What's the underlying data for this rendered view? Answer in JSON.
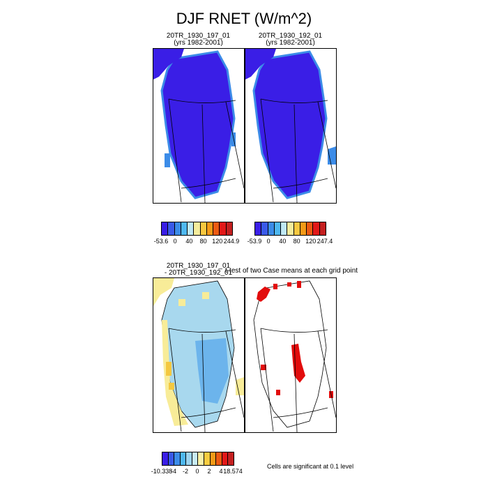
{
  "title": "DJF RNET (W/m^2)",
  "panels": {
    "case1": {
      "name": "20TR_1930_197_01",
      "years": "(yrs 1982-2001)"
    },
    "case2": {
      "name": "20TR_1930_192_01",
      "years": "(yrs 1982-2001)"
    },
    "diff": {
      "line1": "20TR_1930_197_01",
      "line2": "- 20TR_1930_192_01"
    },
    "ttest": {
      "title": "t-test of two Case means at each grid point"
    }
  },
  "colorbars": {
    "case1": {
      "colors": [
        "#3a1ee6",
        "#3a5ae8",
        "#3c8ce8",
        "#4fb8f0",
        "#bfe8f4",
        "#f4ec9c",
        "#f8c840",
        "#f49a18",
        "#ec5a12",
        "#e21818",
        "#c42020"
      ],
      "tick_labels": [
        "-53.6",
        "0",
        "40",
        "80",
        "120",
        "244.9"
      ]
    },
    "case2": {
      "colors": [
        "#3a1ee6",
        "#3a5ae8",
        "#3c8ce8",
        "#4fb8f0",
        "#bfe8f4",
        "#f4ec9c",
        "#f8c840",
        "#f49a18",
        "#ec5a12",
        "#e21818",
        "#c42020"
      ],
      "tick_labels": [
        "-53.9",
        "0",
        "40",
        "80",
        "120",
        "247.4"
      ]
    },
    "diff": {
      "colors": [
        "#3a1ee6",
        "#3a5ae8",
        "#3c8ce8",
        "#4fb8f0",
        "#9cd4f0",
        "#c8ecf4",
        "#f8f0a8",
        "#f8cc40",
        "#f49a18",
        "#ec5a12",
        "#e21818",
        "#c42020"
      ],
      "tick_labels": [
        "-10.338",
        "-4",
        "-2",
        "0",
        "2",
        "4",
        "18.574"
      ]
    }
  },
  "significance_note": "Cells are significant at 0.1 level",
  "map_colors": {
    "case_fill": "#3a1ee6",
    "case_edge": "#3c8ce8",
    "diff_light_blue": "#a8d8ee",
    "diff_mid_blue": "#6cb4ec",
    "diff_yellow": "#f8ec98",
    "diff_orange": "#f4c840",
    "sig_red": "#e20c0c"
  }
}
